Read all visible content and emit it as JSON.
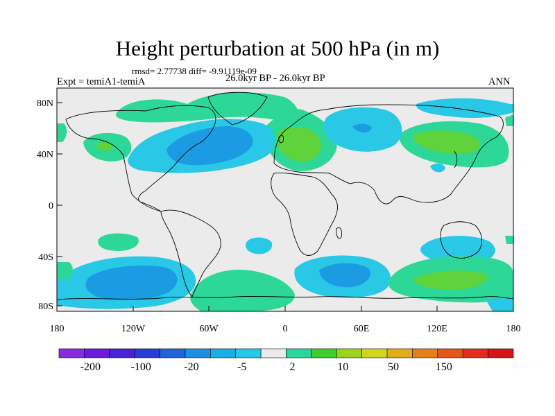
{
  "title": "Height perturbation at 500 hPa (in m)",
  "rmsd_text": "rmsd= 2.77738 diff= -9.91119e-09",
  "expt_text": "Expt = temiA1-temiA",
  "period_text": "26.0kyr BP - 26.0kyr BP",
  "season_text": "ANN",
  "lat_labels": [
    "80N",
    "40N",
    "0",
    "40S",
    "80S"
  ],
  "lon_labels": [
    "180",
    "120W",
    "60W",
    "0",
    "60E",
    "120E",
    "180"
  ],
  "colorbar": {
    "colors": [
      "#8a2be2",
      "#6a1bdc",
      "#4a22d8",
      "#2a3cd6",
      "#1f64d8",
      "#1c8fde",
      "#17b1e4",
      "#24c9e6",
      "#ebebeb",
      "#2bd79a",
      "#3fcf2d",
      "#9ad51c",
      "#d2d61a",
      "#e4ad17",
      "#e68016",
      "#e5561a",
      "#e52d1b",
      "#d81515"
    ],
    "labels": [
      "-200",
      "-100",
      "-20",
      "-5",
      "2",
      "10",
      "50",
      "150"
    ]
  },
  "colors": {
    "background_field": "#ebebeb",
    "negative_light": "#28c8e6",
    "negative_mid": "#1a9be2",
    "positive_light": "#2dd797",
    "positive_mid": "#5ed33b",
    "coast": "#000000"
  }
}
